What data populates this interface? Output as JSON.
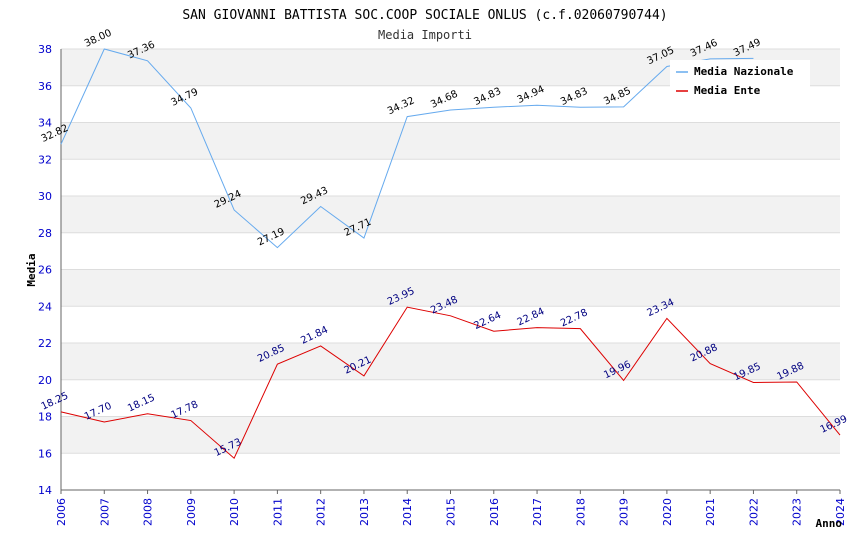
{
  "chart_data": {
    "type": "line",
    "title": "SAN GIOVANNI BATTISTA SOC.COOP SOCIALE ONLUS (c.f.02060790744)",
    "subtitle": "Media Importi",
    "xlabel": "Anno",
    "ylabel": "Media",
    "ylim": [
      14,
      38
    ],
    "yticks": [
      14,
      16,
      18,
      20,
      22,
      24,
      26,
      28,
      30,
      32,
      34,
      36,
      38
    ],
    "grid": true,
    "legend_position": "top-right",
    "categories": [
      "2006",
      "2007",
      "2008",
      "2009",
      "2010",
      "2011",
      "2012",
      "2013",
      "2014",
      "2015",
      "2016",
      "2017",
      "2018",
      "2019",
      "2020",
      "2021",
      "2022",
      "2023",
      "2024"
    ],
    "series": [
      {
        "name": "Media Nazionale",
        "color": "#66aaee",
        "values": [
          32.82,
          38.0,
          37.36,
          34.79,
          29.24,
          27.19,
          29.43,
          27.71,
          34.32,
          34.68,
          34.83,
          34.94,
          34.83,
          34.85,
          37.05,
          37.46,
          37.49,
          null,
          null
        ],
        "labels": [
          "32.82",
          "38.00",
          "37.36",
          "34.79",
          "29.24",
          "27.19",
          "29.43",
          "27.71",
          "34.32",
          "34.68",
          "34.83",
          "34.94",
          "34.83",
          "34.85",
          "37.05",
          "37.46",
          "37.49",
          "",
          ""
        ]
      },
      {
        "name": "Media Ente",
        "color": "#dd0000",
        "values": [
          18.25,
          17.7,
          18.15,
          17.78,
          15.73,
          20.85,
          21.84,
          20.21,
          23.95,
          23.48,
          22.64,
          22.84,
          22.78,
          19.96,
          23.34,
          20.88,
          19.85,
          19.88,
          16.99
        ],
        "labels": [
          "18.25",
          "17.70",
          "18.15",
          "17.78",
          "15.73",
          "20.85",
          "21.84",
          "20.21",
          "23.95",
          "23.48",
          "22.64",
          "22.84",
          "22.78",
          "19.96",
          "23.34",
          "20.88",
          "19.85",
          "19.88",
          "16.99"
        ]
      }
    ]
  }
}
